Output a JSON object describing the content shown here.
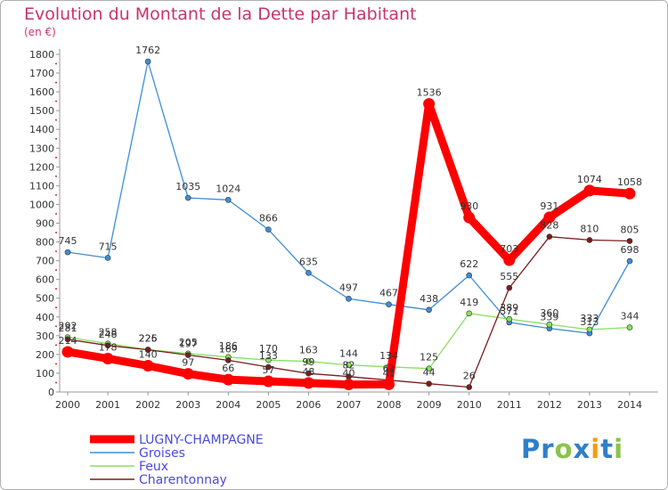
{
  "chart_data": {
    "type": "line",
    "title": "Evolution du Montant de la Dette par Habitant",
    "unit_label": "(en €)",
    "xlabel": "",
    "ylabel": "",
    "x": [
      "2000",
      "2001",
      "2002",
      "2003",
      "2004",
      "2005",
      "2006",
      "2007",
      "2008",
      "2009",
      "2010",
      "2011",
      "2012",
      "2013",
      "2014"
    ],
    "ylim": [
      0,
      1800
    ],
    "yticks": [
      0,
      100,
      200,
      300,
      400,
      500,
      600,
      700,
      800,
      900,
      1000,
      1100,
      1200,
      1300,
      1400,
      1500,
      1600,
      1700,
      1800
    ],
    "grid": false,
    "legend_position": "bottom-left",
    "series": [
      {
        "name": "LUGNY-CHAMPAGNE",
        "color": "#ff0000",
        "values": [
          214,
          178,
          140,
          97,
          66,
          57,
          48,
          40,
          41,
          1536,
          930,
          703,
          931,
          1074,
          1058
        ]
      },
      {
        "name": "Groises",
        "color": "#3d8ed4",
        "values": [
          745,
          715,
          1762,
          1035,
          1024,
          866,
          635,
          497,
          467,
          438,
          622,
          371,
          339,
          313,
          698
        ]
      },
      {
        "name": "Feux",
        "color": "#88e060",
        "values": [
          292,
          258,
          226,
          205,
          186,
          170,
          163,
          144,
          134,
          125,
          419,
          389,
          360,
          333,
          344
        ]
      },
      {
        "name": "Charentonnay",
        "color": "#7a1d1d",
        "values": [
          281,
          248,
          225,
          197,
          169,
          133,
          99,
          82,
          63,
          44,
          26,
          555,
          828,
          810,
          805
        ]
      }
    ]
  },
  "brand": {
    "letters": [
      "P",
      "r",
      "o",
      "x",
      "i",
      "t",
      "i"
    ],
    "colors": [
      "#2f80c8",
      "#2f80c8",
      "#8bc34a",
      "#2f80c8",
      "#f39c12",
      "#2f80c8",
      "#8bc34a"
    ]
  }
}
